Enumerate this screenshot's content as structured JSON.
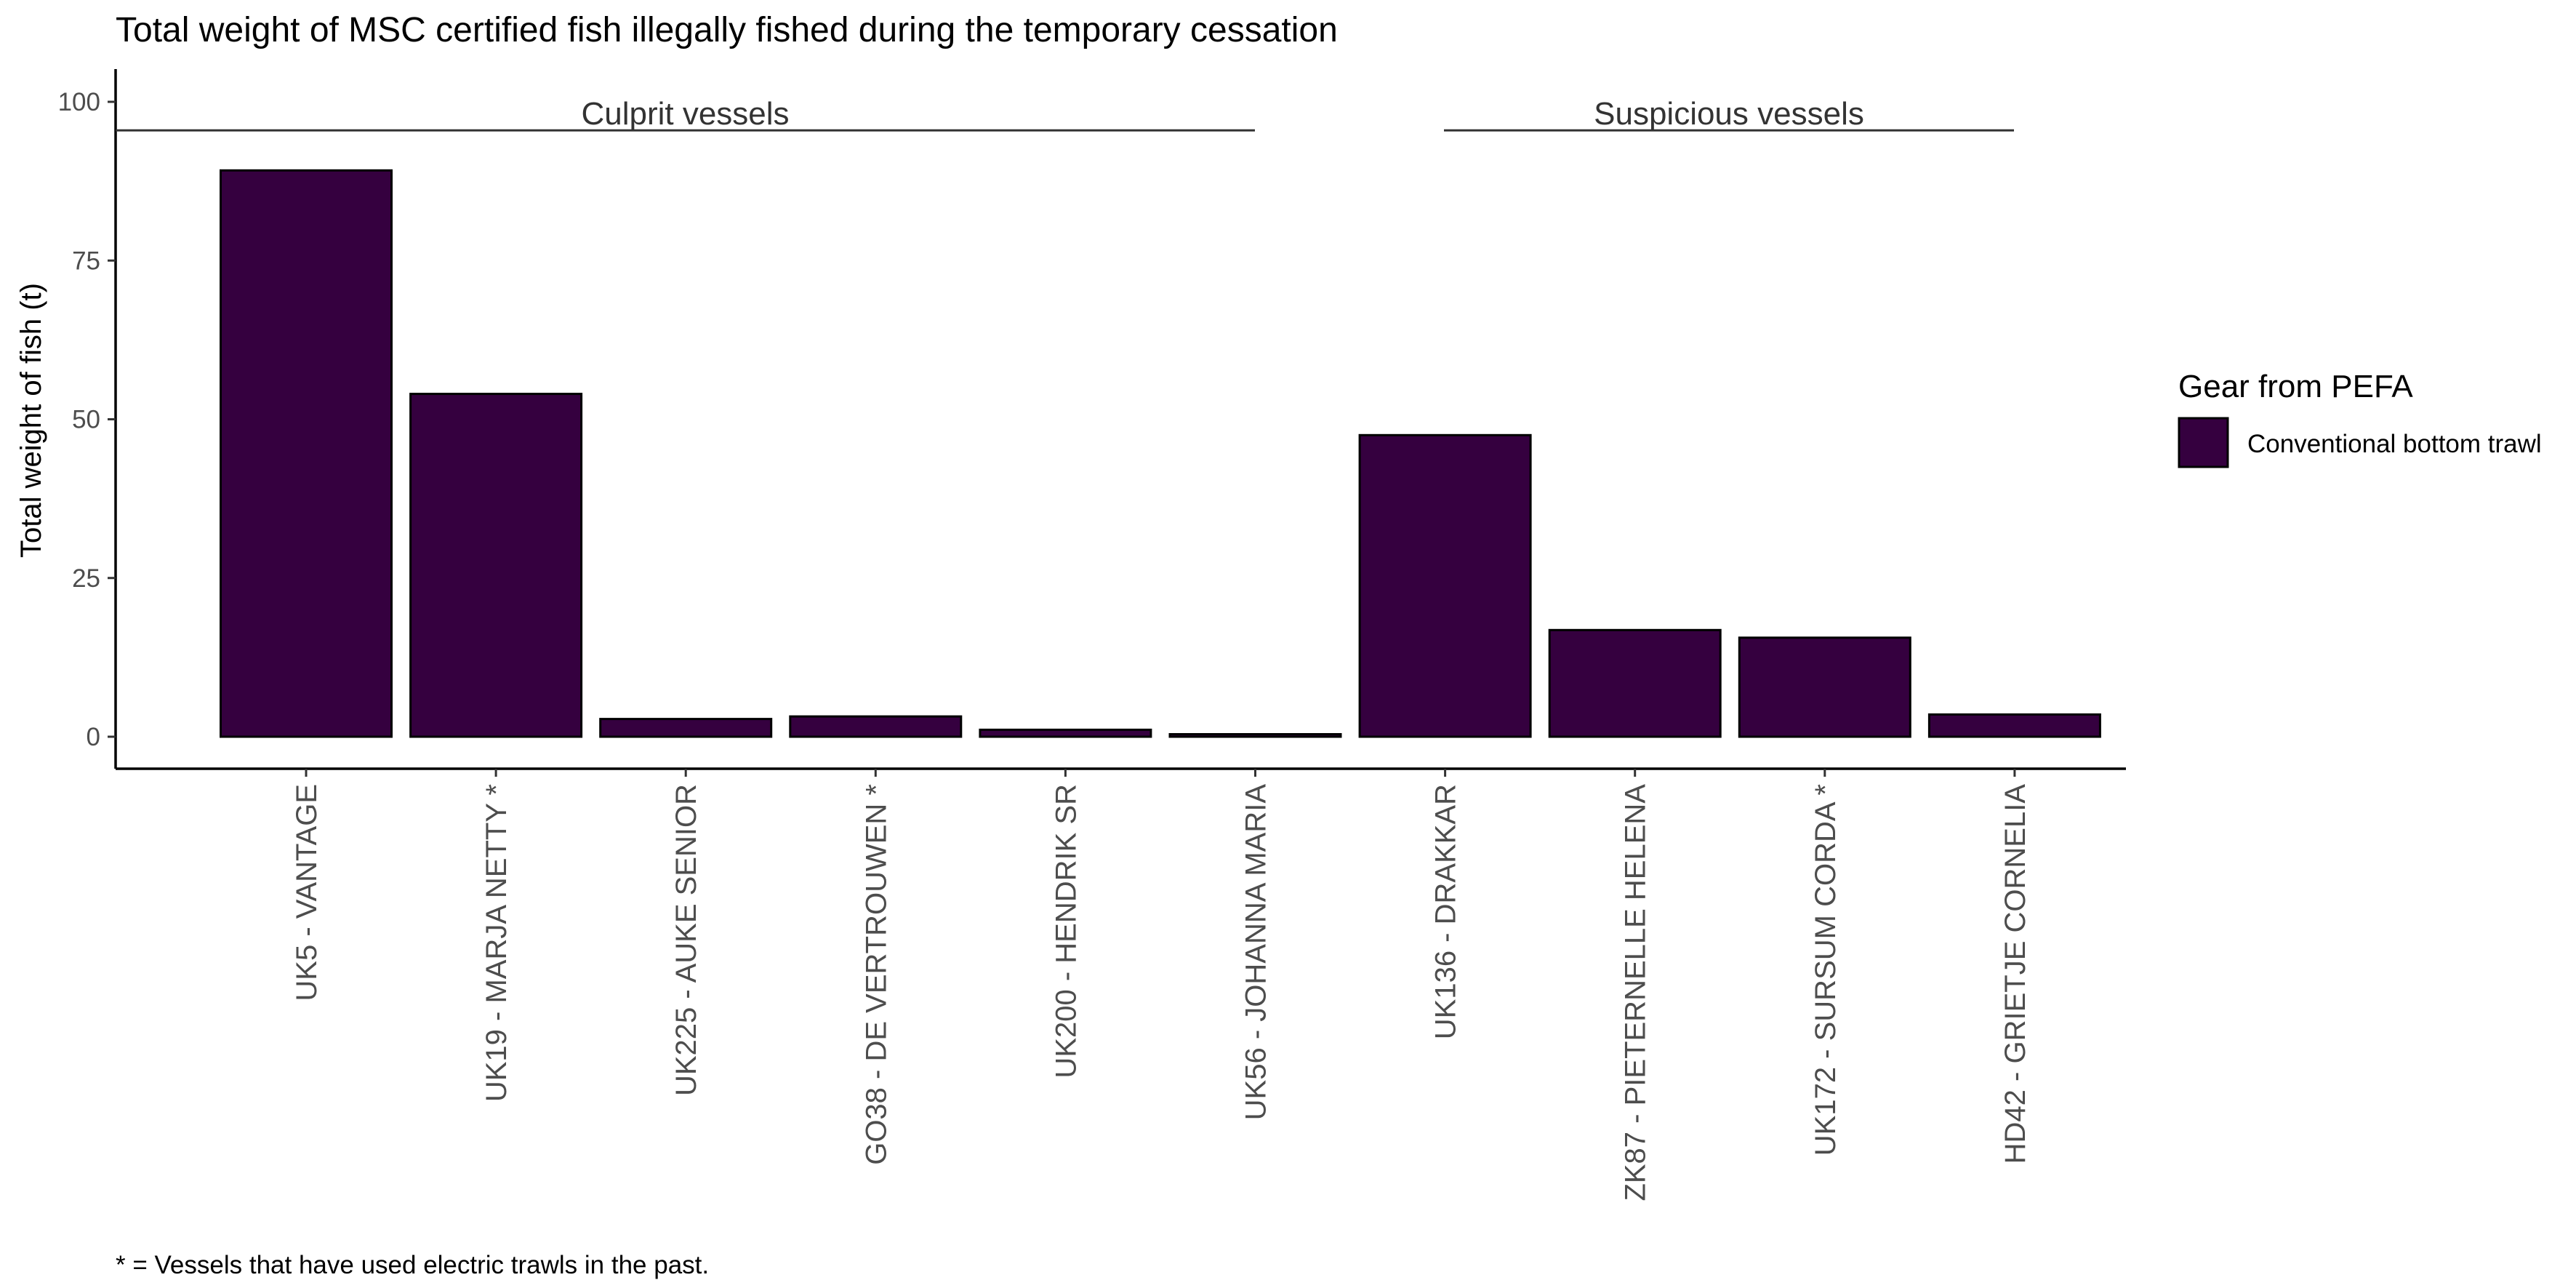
{
  "chart_data": {
    "type": "bar",
    "title": "Total weight of MSC certified fish illegally fished during the temporary cessation",
    "xlabel": "",
    "ylabel": "Total weight of fish (t)",
    "ylim": [
      0,
      100
    ],
    "yticks": [
      "0",
      "25",
      "50",
      "75",
      "100"
    ],
    "ytick_values": [
      0,
      25,
      50,
      75,
      100
    ],
    "categories": [
      "UK5  -  VANTAGE",
      "UK19  -  MARJA NETTY  *",
      "UK225  -  AUKE SENIOR",
      "GO38  -  DE VERTROUWEN  *",
      "UK200  -  HENDRIK SR",
      "UK56  -  JOHANNA MARIA",
      "UK136  -  DRAKKAR",
      "ZK87  -  PIETERNELLE HELENA",
      "UK172  -  SURSUM CORDA  *",
      "HD42  -  GRIETJE CORNELIA"
    ],
    "values": [
      89.2,
      54,
      2.8,
      3.2,
      1.1,
      0.4,
      47.5,
      16.8,
      15.6,
      3.5
    ],
    "groups": [
      {
        "label": "Culprit vessels",
        "from_index": 0,
        "to_index": 5
      },
      {
        "label": "Suspicious vessels",
        "from_index": 6,
        "to_index": 9
      }
    ],
    "legend": {
      "title": "Gear from PEFA",
      "position": "right",
      "entries": [
        {
          "label": "Conventional bottom trawl",
          "color": "#35003f"
        }
      ]
    },
    "bar_color": "#35003f",
    "grid": false,
    "footnote": "* = Vessels that have used electric trawls in the past."
  }
}
